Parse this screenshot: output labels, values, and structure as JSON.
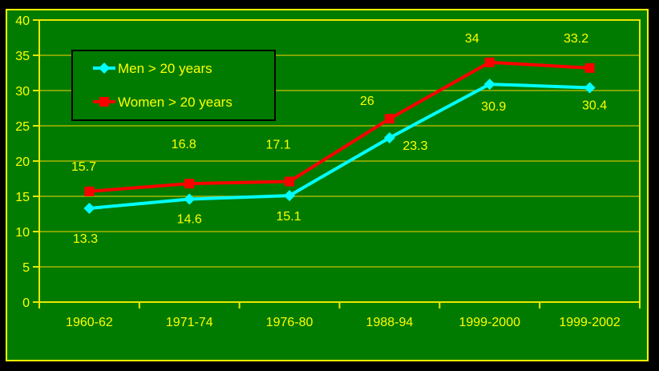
{
  "slide": {
    "background_color": "#007B00",
    "frame_color": "#FFFF00",
    "outer_background": "#000000"
  },
  "chart_data": {
    "type": "line",
    "title": "",
    "xlabel": "",
    "ylabel": "",
    "categories": [
      "1960-62",
      "1971-74",
      "1976-80",
      "1988-94",
      "1999-2000",
      "1999-2002"
    ],
    "series": [
      {
        "name": "Men > 20 years",
        "values": [
          13.3,
          14.6,
          15.1,
          23.3,
          30.9,
          30.4
        ],
        "labels": [
          "13.3",
          "14.6",
          "15.1",
          "23.3",
          "30.9",
          "30.4"
        ],
        "color": "#00FFFF",
        "marker": "diamond",
        "label_side": "below"
      },
      {
        "name": "Women > 20 years",
        "values": [
          15.7,
          16.8,
          17.1,
          26,
          34,
          33.2
        ],
        "labels": [
          "15.7",
          "16.8",
          "17.1",
          "26",
          "34",
          "33.2"
        ],
        "color": "#FF0000",
        "marker": "square",
        "label_side": "above"
      }
    ],
    "ylim": [
      0,
      40
    ],
    "ytick_step": 5,
    "yticks": [
      "0",
      "5",
      "10",
      "15",
      "20",
      "25",
      "30",
      "35",
      "40"
    ],
    "grid": "horizontal",
    "legend_position": "upper-left",
    "axis_color": "#E8E800",
    "gridline_color": "#A8B400",
    "tick_label_color": "#FFFF00",
    "data_label_color": "#FFFF00",
    "legend_border_color": "#000000"
  }
}
